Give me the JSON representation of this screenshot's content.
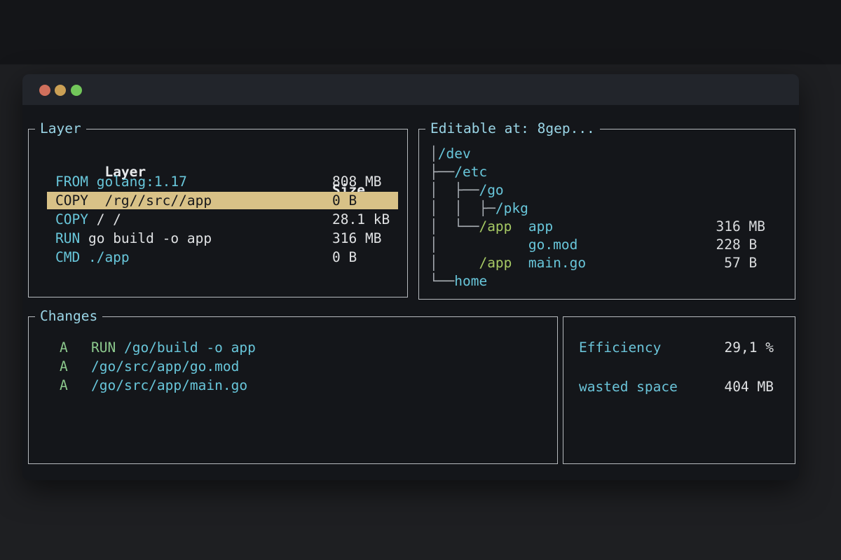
{
  "colors": {
    "accent_cyan": "#68c6da",
    "title_cyan": "#9ad5e6",
    "text_white": "#dfe1e3",
    "green": "#8cc98d",
    "lime_green": "#a6c964",
    "selection_bg": "#d8c187",
    "selection_text": "#17181b",
    "panel_border": "#b6babe",
    "traffic_close": "#d0705c",
    "traffic_minimize": "#cba055",
    "traffic_maximize": "#72c75a"
  },
  "layer_panel": {
    "title": "Layer",
    "columns": {
      "layer": "Layer",
      "size": "Size"
    },
    "rows": [
      {
        "selected": false,
        "size": "808 MB",
        "segments": [
          {
            "text": "FROM golang:1.17",
            "color": "cyan"
          }
        ]
      },
      {
        "selected": true,
        "size": "0 B",
        "segments": [
          {
            "text": "COPY  /rg//src//app",
            "color": "sel"
          }
        ]
      },
      {
        "selected": false,
        "size": "28.1 kB",
        "segments": [
          {
            "text": "COPY ",
            "color": "cyan"
          },
          {
            "text": "/ /",
            "color": "white"
          }
        ]
      },
      {
        "selected": false,
        "size": "316 MB",
        "segments": [
          {
            "text": "RUN ",
            "color": "cyan"
          },
          {
            "text": "go build -o app",
            "color": "white"
          }
        ]
      },
      {
        "selected": false,
        "size": "0 B",
        "segments": [
          {
            "text": "CMD ./app",
            "color": "cyan"
          }
        ]
      }
    ]
  },
  "tree_panel": {
    "title": "Editable at: 8gep...",
    "rows": [
      {
        "size": "",
        "segments": [
          {
            "text": "│",
            "color": "gray"
          },
          {
            "text": "/dev",
            "color": "cyan"
          }
        ]
      },
      {
        "size": "",
        "segments": [
          {
            "text": "├──",
            "color": "gray"
          },
          {
            "text": "/etc",
            "color": "cyan"
          }
        ]
      },
      {
        "size": "",
        "segments": [
          {
            "text": "│  ├──",
            "color": "gray"
          },
          {
            "text": "/go",
            "color": "cyan"
          }
        ]
      },
      {
        "size": "",
        "segments": [
          {
            "text": "│  │  ├─",
            "color": "gray"
          },
          {
            "text": "/pkg",
            "color": "cyan"
          }
        ]
      },
      {
        "size": "316 MB",
        "segments": [
          {
            "text": "│  └──",
            "color": "gray"
          },
          {
            "text": "/app",
            "color": "lime"
          },
          {
            "text": "  ",
            "color": "gray"
          },
          {
            "text": "app",
            "color": "cyan"
          }
        ]
      },
      {
        "size": "228 B ",
        "segments": [
          {
            "text": "│           ",
            "color": "gray"
          },
          {
            "text": "go.mod",
            "color": "cyan"
          }
        ]
      },
      {
        "size": " 57 B ",
        "segments": [
          {
            "text": "│     ",
            "color": "gray"
          },
          {
            "text": "/app",
            "color": "lime"
          },
          {
            "text": "  ",
            "color": "gray"
          },
          {
            "text": "main.go",
            "color": "cyan"
          }
        ]
      },
      {
        "size": "",
        "segments": [
          {
            "text": "└──",
            "color": "gray"
          },
          {
            "text": "home",
            "color": "cyan"
          }
        ]
      }
    ]
  },
  "changes_panel": {
    "title": "Changes",
    "rows": [
      {
        "marker": "A",
        "segments": [
          {
            "text": "RUN ",
            "color": "green"
          },
          {
            "text": "/go/build -o app",
            "color": "cyan"
          }
        ]
      },
      {
        "marker": "A",
        "segments": [
          {
            "text": "/go/src/app/go.mod",
            "color": "cyan"
          }
        ]
      },
      {
        "marker": "A",
        "segments": [
          {
            "text": "/go/src/app/main.go",
            "color": "cyan"
          }
        ]
      }
    ]
  },
  "stats_panel": {
    "rows": [
      {
        "label": "Efficiency",
        "value": "29,1 %"
      },
      {
        "label": "wasted space",
        "value": "404 MB"
      }
    ]
  }
}
